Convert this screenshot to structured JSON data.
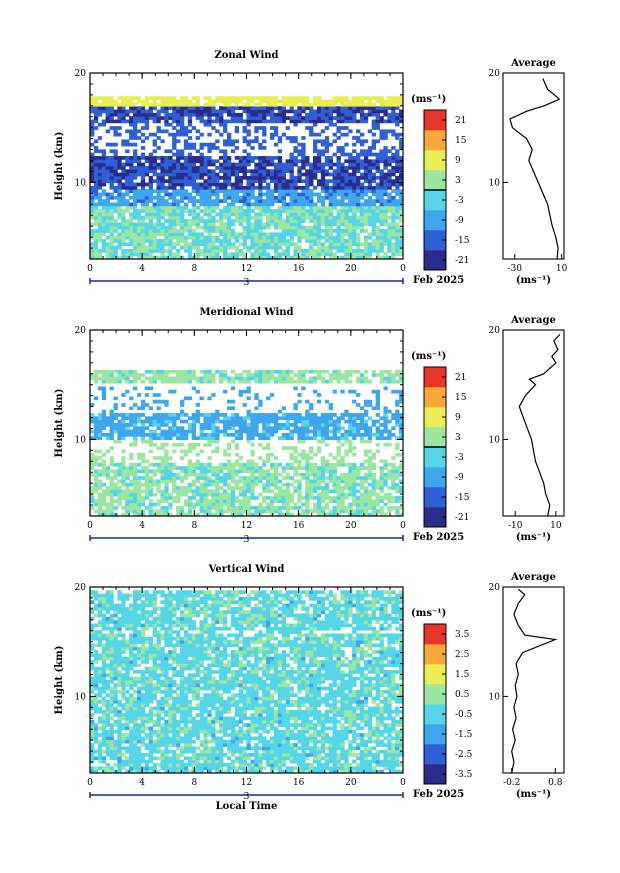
{
  "chart_data": [
    {
      "type": "heatmap",
      "title": "Zonal Wind",
      "xlabel": "",
      "ylabel": "Height (km)",
      "xticks": [
        "0",
        "4",
        "8",
        "12",
        "16",
        "20",
        "0"
      ],
      "xlim": [
        0,
        24
      ],
      "ylim": [
        3,
        20
      ],
      "yticks": [
        "10",
        "20"
      ],
      "day_label": "3",
      "date_label": "Feb 2025",
      "colorbar": {
        "unit": "(ms⁻¹)",
        "ticks": [
          "21",
          "15",
          "9",
          "3",
          "-3",
          "-9",
          "-15",
          "-21"
        ],
        "range": [
          -24,
          24
        ]
      },
      "average_profile": {
        "title": "Average",
        "xticks": [
          "-30",
          "10"
        ],
        "xlim": [
          -40,
          12
        ],
        "unit": "(ms⁻¹)",
        "points": [
          [
            6,
            3
          ],
          [
            7,
            4
          ],
          [
            5,
            5
          ],
          [
            2,
            6
          ],
          [
            0,
            7
          ],
          [
            -2,
            8
          ],
          [
            -6,
            9
          ],
          [
            -10,
            10
          ],
          [
            -14,
            11
          ],
          [
            -18,
            12
          ],
          [
            -15,
            13
          ],
          [
            -20,
            14
          ],
          [
            -32,
            15
          ],
          [
            -34,
            15.8
          ],
          [
            -20,
            16.5
          ],
          [
            -5,
            17
          ],
          [
            8,
            17.6
          ],
          [
            4,
            18
          ],
          [
            -2,
            18.5
          ],
          [
            -4,
            19
          ],
          [
            -6,
            19.5
          ]
        ]
      },
      "field": {
        "kind": "zonal",
        "seed": 11,
        "white_frac": 0.3
      }
    },
    {
      "type": "heatmap",
      "title": "Meridional Wind",
      "xlabel": "",
      "ylabel": "Height (km)",
      "xticks": [
        "0",
        "4",
        "8",
        "12",
        "16",
        "20",
        "0"
      ],
      "xlim": [
        0,
        24
      ],
      "ylim": [
        3,
        20
      ],
      "yticks": [
        "10",
        "20"
      ],
      "day_label": "3",
      "date_label": "Feb 2025",
      "colorbar": {
        "unit": "(ms⁻¹)",
        "ticks": [
          "21",
          "15",
          "9",
          "3",
          "-3",
          "-9",
          "-15",
          "-21"
        ],
        "range": [
          -24,
          24
        ]
      },
      "average_profile": {
        "title": "Average",
        "xticks": [
          "-10",
          "10"
        ],
        "xlim": [
          -16,
          14
        ],
        "unit": "(ms⁻¹)",
        "points": [
          [
            6,
            3
          ],
          [
            7,
            4
          ],
          [
            5,
            5
          ],
          [
            4,
            6
          ],
          [
            2,
            7
          ],
          [
            0,
            8
          ],
          [
            -1,
            9
          ],
          [
            -2,
            10
          ],
          [
            -4,
            11
          ],
          [
            -6,
            12
          ],
          [
            -8,
            13
          ],
          [
            -5,
            14
          ],
          [
            0,
            15
          ],
          [
            -3,
            15.5
          ],
          [
            4,
            16
          ],
          [
            10,
            17
          ],
          [
            8,
            17.6
          ],
          [
            11,
            18.2
          ],
          [
            9,
            19
          ],
          [
            12,
            19.6
          ]
        ]
      },
      "field": {
        "kind": "meridional",
        "seed": 23,
        "white_frac": 0.45
      }
    },
    {
      "type": "heatmap",
      "title": "Vertical Wind",
      "xlabel": "Local Time",
      "ylabel": "Height (km)",
      "xticks": [
        "0",
        "4",
        "8",
        "12",
        "16",
        "20",
        "0"
      ],
      "xlim": [
        0,
        24
      ],
      "ylim": [
        3,
        20
      ],
      "yticks": [
        "10",
        "20"
      ],
      "day_label": "3",
      "date_label": "Feb 2025",
      "colorbar": {
        "unit": "(ms⁻¹)",
        "ticks": [
          "3.5",
          "2.5",
          "1.5",
          "0.5",
          "-0.5",
          "-1.5",
          "-2.5",
          "-3.5"
        ],
        "range": [
          -4,
          4
        ]
      },
      "average_profile": {
        "title": "Average",
        "xticks": [
          "-0.2",
          "0.8"
        ],
        "xlim": [
          -0.4,
          1.0
        ],
        "unit": "(ms⁻¹)",
        "points": [
          [
            -0.2,
            3
          ],
          [
            -0.15,
            4
          ],
          [
            -0.2,
            5
          ],
          [
            -0.12,
            6
          ],
          [
            -0.18,
            7
          ],
          [
            -0.1,
            8
          ],
          [
            -0.15,
            9
          ],
          [
            -0.08,
            10
          ],
          [
            -0.12,
            11
          ],
          [
            -0.05,
            12
          ],
          [
            -0.1,
            13
          ],
          [
            0.05,
            14
          ],
          [
            0.8,
            15.2
          ],
          [
            0.1,
            15.6
          ],
          [
            -0.05,
            16.5
          ],
          [
            -0.15,
            17.5
          ],
          [
            -0.05,
            18.5
          ],
          [
            0.1,
            19.3
          ],
          [
            -0.05,
            19.8
          ]
        ]
      },
      "field": {
        "kind": "vertical",
        "seed": 37,
        "white_frac": 0.4
      }
    }
  ]
}
